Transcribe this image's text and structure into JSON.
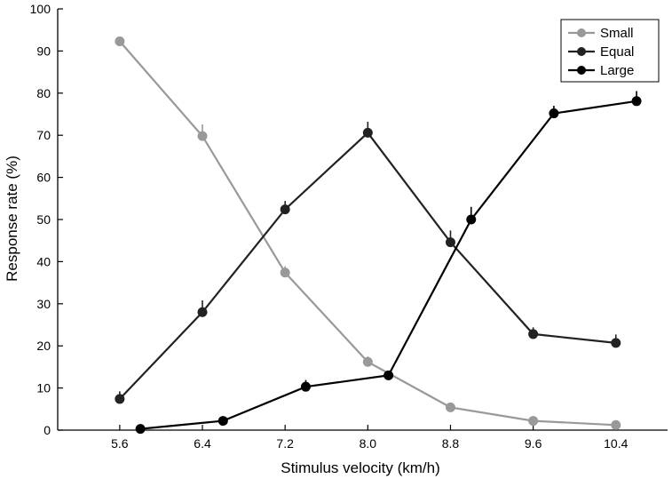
{
  "chart_data": {
    "type": "line",
    "xlabel": "Stimulus velocity (km/h)",
    "ylabel": "Response rate (%)",
    "ylim": [
      0,
      100
    ],
    "yticks": [
      0,
      10,
      20,
      30,
      40,
      50,
      60,
      70,
      80,
      90,
      100
    ],
    "xlim": [
      5.0,
      10.9
    ],
    "xticks": [
      5.6,
      6.4,
      7.2,
      8.0,
      8.8,
      9.6,
      10.4
    ],
    "xtick_labels": [
      "5.6",
      "6.4",
      "7.2",
      "8.0",
      "8.8",
      "9.6",
      "10.4"
    ],
    "grid": false,
    "legend_position": "top-right",
    "series": [
      {
        "name": "Small",
        "color": "#999999",
        "x": [
          5.6,
          6.4,
          7.2,
          8.0,
          8.8,
          9.6,
          10.4
        ],
        "values": [
          92.3,
          69.8,
          37.4,
          16.2,
          5.4,
          2.2,
          1.2
        ],
        "errors": [
          0.8,
          2.8,
          1.5,
          1.3,
          0.6,
          0.8,
          0.8
        ]
      },
      {
        "name": "Equal",
        "color": "#222222",
        "x": [
          5.6,
          6.4,
          7.2,
          8.0,
          8.8,
          9.6,
          10.4
        ],
        "values": [
          7.4,
          28.0,
          52.4,
          70.6,
          44.6,
          22.8,
          20.7
        ],
        "errors": [
          1.8,
          2.8,
          2.0,
          2.6,
          2.8,
          1.6,
          2.0
        ]
      },
      {
        "name": "Large",
        "color": "#000000",
        "x": [
          5.8,
          6.6,
          7.4,
          8.2,
          9.0,
          9.8,
          10.6
        ],
        "values": [
          0.3,
          2.2,
          10.3,
          13.0,
          50.0,
          75.2,
          78.1
        ],
        "errors": [
          0.5,
          0.8,
          1.6,
          1.0,
          3.0,
          1.8,
          2.4
        ]
      }
    ]
  }
}
